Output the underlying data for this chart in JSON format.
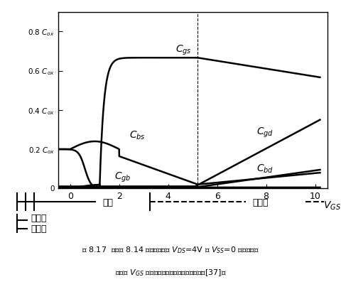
{
  "title": "",
  "xlabel": "$V_{GS}$ (V)",
  "ylabel_ticks": [
    "0",
    "0.2 $C_{ox}$",
    "0.4 $C_{ox}$",
    "0.6 $C_{ox}$",
    "0.8 $C_{ox}$"
  ],
  "ytick_vals": [
    0,
    0.2,
    0.4,
    0.6,
    0.8
  ],
  "xlim": [
    -0.5,
    10.5
  ],
  "ylim": [
    0,
    0.9
  ],
  "xtick_vals": [
    0,
    2,
    4,
    6,
    8,
    10
  ],
  "VT": 1.2,
  "VDS": 4.0,
  "caption_line1": "图 8.17  对于图 8.14 中的器件，当 $V_{DS}$=4V 及 $V_{SS}$=0 时，小信号",
  "caption_line2": "电容与 $V_{GS}$ 的关系曲线（用精确计算预计的）[37]。",
  "region_labels": [
    "中反型",
    "弱反型"
  ],
  "sat_label": "饱和",
  "nonsat_label": "非饱和",
  "bg_color": "#ffffff",
  "line_color": "#000000",
  "curve_labels": {
    "Cgs": "$C_{gs}$",
    "Cbs": "$C_{bs}$",
    "Cgb": "$C_{gb}$",
    "Cgd": "$C_{gd}$",
    "Cbd": "$C_{bd}$"
  }
}
